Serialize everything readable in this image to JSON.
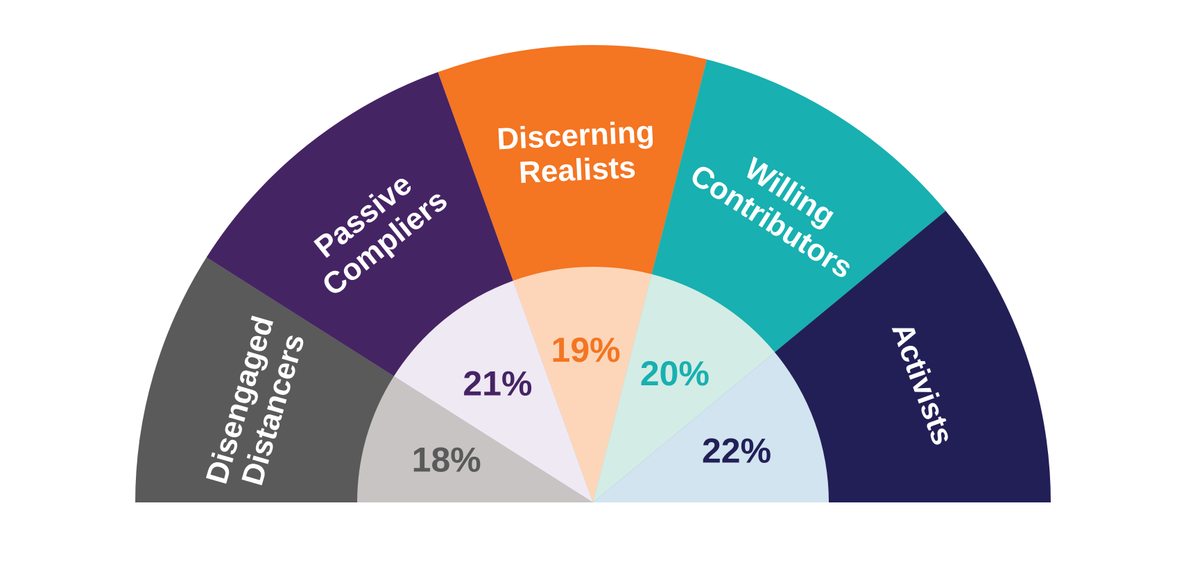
{
  "chart_data": {
    "type": "pie",
    "variant": "half-donut",
    "title": "",
    "legend": "none",
    "segments": [
      {
        "label": "Disengaged Distancers",
        "label_lines": [
          "Disengaged",
          "Distancers"
        ],
        "value": 18,
        "value_label": "18%",
        "color": "#5a5a5a",
        "inner_color": "#c8c4c4",
        "value_color": "#5a5a5a"
      },
      {
        "label": "Passive Compliers",
        "label_lines": [
          "Passive",
          "Compliers"
        ],
        "value": 21,
        "value_label": "21%",
        "color": "#452464",
        "inner_color": "#efe9f3",
        "value_color": "#452464"
      },
      {
        "label": "Discerning Realists",
        "label_lines": [
          "Discerning",
          "Realists"
        ],
        "value": 19,
        "value_label": "19%",
        "color": "#f47522",
        "inner_color": "#fdd6ba",
        "value_color": "#f47522"
      },
      {
        "label": "Willing Contributors",
        "label_lines": [
          "Willing",
          "Contributors"
        ],
        "value": 20,
        "value_label": "20%",
        "color": "#18b0b0",
        "inner_color": "#d3ece6",
        "value_color": "#18b0b0"
      },
      {
        "label": "Activists",
        "label_lines": [
          "Activists"
        ],
        "value": 22,
        "value_label": "22%",
        "color": "#221f57",
        "inner_color": "#d1e4f0",
        "value_color": "#221f57"
      }
    ]
  }
}
